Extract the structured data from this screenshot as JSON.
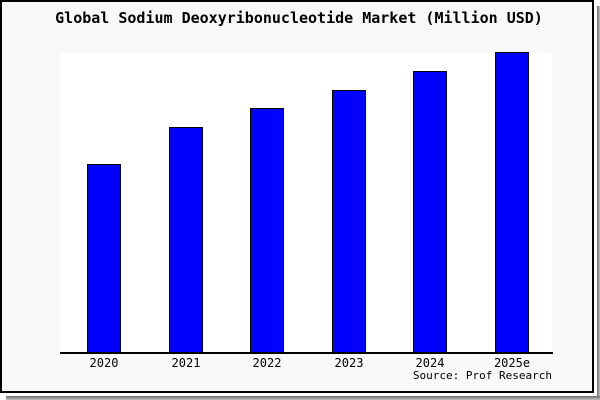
{
  "title": "Global Sodium Deoxyribonucleotide Market (Million USD)",
  "source_note": "Source: Prof Research",
  "colors": {
    "bar_fill": "#0000ff",
    "bar_border": "#000000",
    "chart_background": "#f8f8f8",
    "plot_background": "#ffffff",
    "axis": "#000000",
    "frame_border": "#000000",
    "shadow": "#8f8f8f"
  },
  "chart_data": {
    "type": "bar",
    "title": "Global Sodium Deoxyribonucleotide Market (Million USD)",
    "categories": [
      "2020",
      "2021",
      "2022",
      "2023",
      "2024",
      "2025e"
    ],
    "values": [
      62.8,
      75.1,
      81.4,
      87.5,
      93.6,
      100
    ],
    "value_note": "no numeric y-axis shown in figure; values are relative bar heights with tallest bar (2025e) = 100",
    "xlabel": "",
    "ylabel": "",
    "ylim": [
      0,
      100
    ],
    "y_axis_visible": false,
    "gridlines": false,
    "legend": false,
    "bar_color": "#0000ff",
    "source": "Source: Prof Research"
  }
}
